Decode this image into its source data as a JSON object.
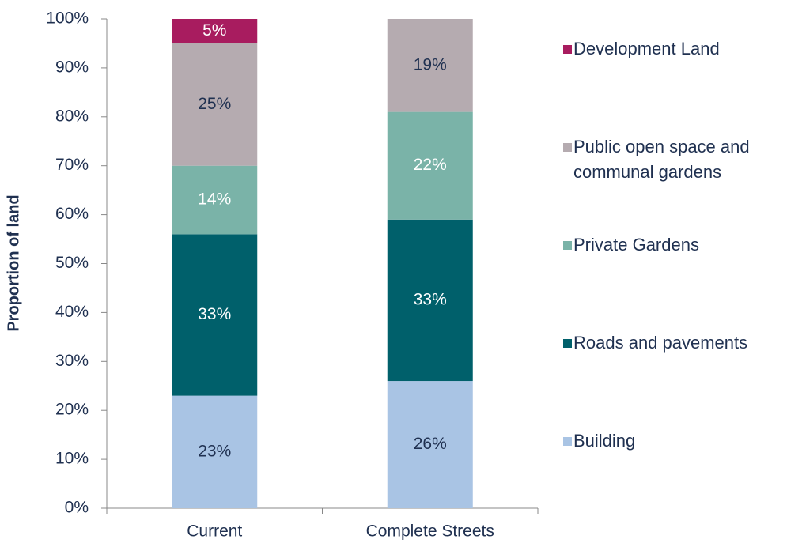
{
  "chart_data": {
    "type": "stacked_bar",
    "y_label": "Proportion of land",
    "categories": [
      "Current",
      "Complete Streets"
    ],
    "series": [
      {
        "name": "Building",
        "color": "#a9c4e4",
        "label_color": "#1f3050",
        "values": [
          23,
          26
        ],
        "value_labels": [
          "23%",
          "26%"
        ]
      },
      {
        "name": "Roads and pavements",
        "color": "#00606b",
        "label_color": "#ffffff",
        "values": [
          33,
          33
        ],
        "value_labels": [
          "33%",
          "33%"
        ]
      },
      {
        "name": "Private Gardens",
        "color": "#7ab3a8",
        "label_color": "#ffffff",
        "values": [
          14,
          22
        ],
        "value_labels": [
          "14%",
          "22%"
        ]
      },
      {
        "name": "Public open space and communal gardens",
        "color": "#b5abb0",
        "label_color": "#1f3050",
        "values": [
          25,
          19
        ],
        "value_labels": [
          "25%",
          "19%"
        ]
      },
      {
        "name": "Development Land",
        "color": "#a81c5f",
        "label_color": "#ffffff",
        "values": [
          5,
          0
        ],
        "value_labels": [
          "5%",
          null
        ]
      }
    ],
    "ylim": [
      0,
      100
    ],
    "yticks": [
      {
        "value": 0,
        "label": "0%"
      },
      {
        "value": 10,
        "label": "10%"
      },
      {
        "value": 20,
        "label": "20%"
      },
      {
        "value": 30,
        "label": "30%"
      },
      {
        "value": 40,
        "label": "40%"
      },
      {
        "value": 50,
        "label": "50%"
      },
      {
        "value": 60,
        "label": "60%"
      },
      {
        "value": 70,
        "label": "70%"
      },
      {
        "value": 80,
        "label": "80%"
      },
      {
        "value": 90,
        "label": "90%"
      },
      {
        "value": 100,
        "label": "100%"
      }
    ],
    "legend": "right"
  }
}
